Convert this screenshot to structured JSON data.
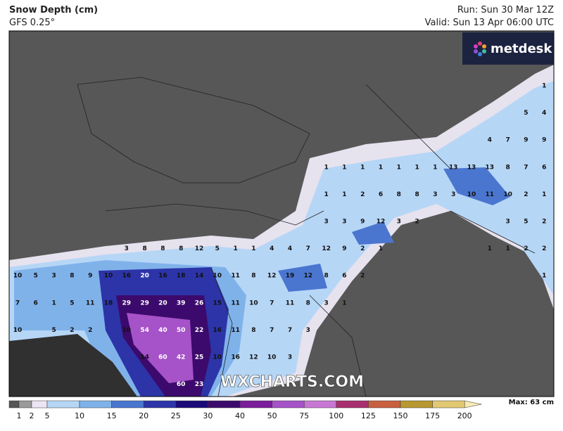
{
  "header": {
    "title": "Snow Depth (cm)",
    "model": "GFS 0.25°",
    "run": "Run: Sun 30 Mar 12Z",
    "valid": "Valid: Sun 13 Apr 06:00 UTC"
  },
  "logo": "metdesk",
  "watermark": "WXCHARTS.COM",
  "grid_labels": [
    [
      null,
      null,
      null,
      null,
      null,
      null,
      null,
      null,
      null,
      null,
      null,
      null,
      null,
      null,
      null,
      null,
      null,
      null,
      null,
      null,
      null,
      null,
      null,
      null,
      null,
      null,
      null,
      null,
      null,
      1
    ],
    [
      null,
      null,
      null,
      null,
      null,
      null,
      null,
      null,
      null,
      null,
      null,
      null,
      null,
      null,
      null,
      null,
      null,
      null,
      null,
      null,
      null,
      null,
      null,
      null,
      null,
      null,
      null,
      null,
      5,
      4
    ],
    [
      null,
      null,
      null,
      null,
      null,
      null,
      null,
      null,
      null,
      null,
      null,
      null,
      null,
      null,
      null,
      null,
      null,
      null,
      null,
      null,
      null,
      null,
      null,
      null,
      null,
      null,
      4,
      7,
      9,
      9
    ],
    [
      null,
      null,
      null,
      null,
      null,
      null,
      null,
      null,
      null,
      null,
      null,
      null,
      null,
      null,
      null,
      null,
      null,
      1,
      1,
      1,
      1,
      1,
      1,
      1,
      13,
      13,
      13,
      8,
      7,
      6
    ],
    [
      null,
      null,
      null,
      null,
      null,
      null,
      null,
      null,
      null,
      null,
      null,
      null,
      null,
      null,
      null,
      null,
      null,
      1,
      1,
      2,
      6,
      8,
      8,
      3,
      3,
      10,
      11,
      10,
      2,
      1
    ],
    [
      null,
      null,
      null,
      null,
      null,
      null,
      null,
      null,
      null,
      null,
      null,
      null,
      null,
      null,
      null,
      null,
      null,
      3,
      3,
      9,
      12,
      3,
      2,
      null,
      null,
      null,
      null,
      3,
      5,
      2
    ],
    [
      null,
      null,
      null,
      null,
      null,
      null,
      3,
      8,
      8,
      8,
      12,
      5,
      1,
      1,
      4,
      4,
      7,
      12,
      9,
      2,
      1,
      null,
      null,
      null,
      null,
      null,
      1,
      1,
      2,
      2
    ],
    [
      10,
      5,
      3,
      8,
      9,
      10,
      16,
      20,
      16,
      18,
      14,
      10,
      11,
      8,
      12,
      19,
      12,
      8,
      6,
      2,
      null,
      null,
      null,
      null,
      null,
      null,
      null,
      null,
      null,
      1
    ],
    [
      7,
      6,
      1,
      5,
      11,
      18,
      29,
      29,
      20,
      39,
      26,
      15,
      11,
      10,
      7,
      11,
      8,
      3,
      1,
      null,
      null,
      null,
      null,
      null,
      null,
      null,
      null,
      null,
      null,
      null
    ],
    [
      10,
      null,
      5,
      2,
      2,
      null,
      10,
      54,
      40,
      50,
      22,
      16,
      11,
      8,
      7,
      7,
      3,
      null,
      null,
      null,
      null,
      null,
      null,
      null,
      null,
      null,
      null,
      null,
      null,
      null
    ],
    [
      null,
      null,
      null,
      null,
      null,
      null,
      null,
      14,
      60,
      42,
      25,
      10,
      16,
      12,
      10,
      3,
      null,
      null,
      null,
      null,
      null,
      null,
      null,
      null,
      null,
      null,
      null,
      null,
      null,
      null
    ],
    [
      null,
      null,
      null,
      null,
      null,
      null,
      null,
      null,
      null,
      60,
      23,
      null,
      null,
      null,
      null,
      null,
      null,
      null,
      null,
      null,
      null,
      null,
      null,
      null,
      null,
      null,
      null,
      null,
      null,
      null
    ]
  ],
  "legend": {
    "labels": [
      1,
      2,
      5,
      10,
      15,
      20,
      25,
      30,
      40,
      50,
      75,
      100,
      125,
      150,
      175,
      200
    ],
    "colors": [
      "#555555",
      "#9a9a9a",
      "#ece6f4",
      "#b6d6f6",
      "#80b2ea",
      "#4a76d0",
      "#2c34a8",
      "#1a0a78",
      "#3c0a6c",
      "#7a1e9c",
      "#a652c8",
      "#c878d4",
      "#a8306e",
      "#c86040",
      "#b89830",
      "#e2c872",
      "#f8eab4"
    ]
  },
  "max_label": "Max: 63 cm"
}
